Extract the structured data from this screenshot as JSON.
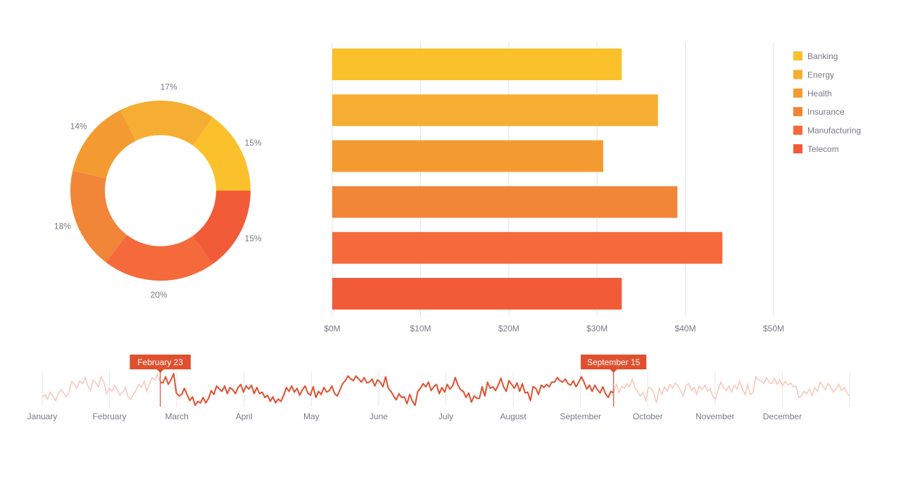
{
  "palette": [
    "#FAC12C",
    "#F5AE31",
    "#F39B31",
    "#F18538",
    "#F46A3A",
    "#F25B38"
  ],
  "chart_data": [
    {
      "type": "pie",
      "subtype": "donut",
      "slices": [
        {
          "category": "Banking",
          "value": 15,
          "label": "15%",
          "color": "#FAC12C"
        },
        {
          "category": "Energy",
          "value": 17,
          "label": "17%",
          "color": "#F5AE31"
        },
        {
          "category": "Health",
          "value": 14,
          "label": "14%",
          "color": "#F39B31"
        },
        {
          "category": "Insurance",
          "value": 18,
          "label": "18%",
          "color": "#F18538"
        },
        {
          "category": "Manufacturing",
          "value": 20,
          "label": "20%",
          "color": "#F46A3A"
        },
        {
          "category": "Telecom",
          "value": 15,
          "label": "15%",
          "color": "#F25B38"
        }
      ]
    },
    {
      "type": "bar",
      "orientation": "horizontal",
      "categories": [
        "Banking",
        "Energy",
        "Health",
        "Insurance",
        "Manufacturing",
        "Telecom"
      ],
      "values": [
        32.8,
        36.9,
        30.7,
        39.1,
        44.2,
        32.8
      ],
      "colors": [
        "#FAC12C",
        "#F5AE31",
        "#F39B31",
        "#F18538",
        "#F46A3A",
        "#F25B38"
      ],
      "xlim": [
        0,
        50
      ],
      "xticks": [
        0,
        10,
        20,
        30,
        40,
        50
      ],
      "xtick_labels": [
        "$0M",
        "$10M",
        "$20M",
        "$30M",
        "$40M",
        "$50M"
      ],
      "grid": true,
      "legend": {
        "placement": "right",
        "entries": [
          "Banking",
          "Energy",
          "Health",
          "Insurance",
          "Manufacturing",
          "Telecom"
        ]
      }
    },
    {
      "type": "line",
      "role": "range-selector",
      "months": [
        "January",
        "February",
        "March",
        "April",
        "May",
        "June",
        "July",
        "August",
        "September",
        "October",
        "November",
        "December"
      ],
      "selection": {
        "start": "February 23",
        "end": "September 15"
      },
      "start_label": "February 23",
      "end_label": "September 15",
      "line_color": "#E0502F",
      "faded_color": "#F6C9BC",
      "values": [
        40,
        44,
        38,
        47,
        42,
        36,
        45,
        50,
        46,
        41,
        48,
        61,
        57,
        52,
        62,
        58,
        66,
        55,
        49,
        63,
        59,
        54,
        67,
        60,
        45,
        52,
        48,
        56,
        50,
        43,
        47,
        53,
        41,
        38,
        44,
        50,
        57,
        53,
        61,
        48,
        58,
        66,
        63,
        70,
        60,
        59,
        67,
        57,
        63,
        71,
        46,
        42,
        44,
        52,
        44,
        36,
        41,
        30,
        35,
        33,
        40,
        33,
        39,
        49,
        44,
        55,
        51,
        48,
        55,
        45,
        53,
        50,
        45,
        53,
        57,
        47,
        55,
        51,
        56,
        45,
        53,
        45,
        47,
        40,
        43,
        35,
        41,
        33,
        38,
        35,
        43,
        53,
        48,
        55,
        47,
        52,
        43,
        50,
        55,
        46,
        43,
        54,
        40,
        48,
        44,
        53,
        47,
        49,
        55,
        45,
        42,
        50,
        58,
        62,
        68,
        64,
        62,
        68,
        64,
        60,
        66,
        59,
        60,
        64,
        55,
        63,
        60,
        54,
        67,
        52,
        48,
        42,
        37,
        45,
        40,
        41,
        32,
        44,
        35,
        30,
        48,
        52,
        58,
        54,
        60,
        49,
        54,
        57,
        45,
        53,
        47,
        57,
        51,
        55,
        66,
        56,
        50,
        48,
        40,
        46,
        34,
        42,
        39,
        39,
        54,
        42,
        60,
        52,
        54,
        49,
        56,
        65,
        54,
        48,
        62,
        57,
        52,
        59,
        48,
        58,
        46,
        47,
        36,
        54,
        52,
        44,
        56,
        53,
        57,
        54,
        60,
        60,
        66,
        62,
        60,
        64,
        58,
        56,
        62,
        54,
        60,
        67,
        60,
        51,
        56,
        48,
        56,
        50,
        46,
        54,
        45,
        40,
        48,
        46,
        57,
        46,
        55,
        52,
        58,
        54,
        64,
        52,
        48,
        42,
        47,
        36,
        53,
        52,
        46,
        33,
        52,
        44,
        54,
        48,
        57,
        52,
        59,
        55,
        49,
        42,
        56,
        58,
        49,
        53,
        44,
        55,
        50,
        56,
        48,
        52,
        41,
        38,
        50,
        60,
        53,
        49,
        55,
        47,
        56,
        51,
        61,
        51,
        44,
        57,
        44,
        46,
        67,
        63,
        62,
        58,
        66,
        60,
        58,
        65,
        57,
        63,
        55,
        61,
        56,
        59,
        54,
        55,
        40,
        42,
        48,
        45,
        51,
        43,
        53,
        48,
        60,
        55,
        50,
        58,
        54,
        47,
        51,
        57,
        49,
        53,
        46,
        42
      ]
    }
  ]
}
